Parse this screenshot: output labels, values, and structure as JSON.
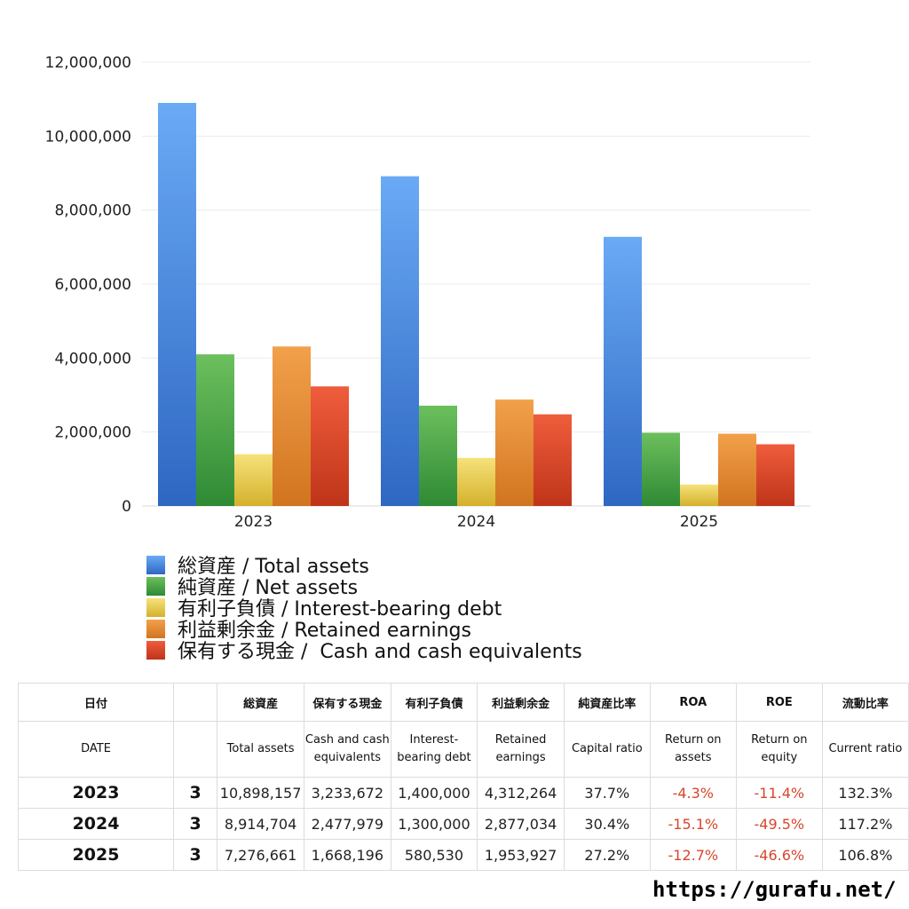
{
  "chart_data": {
    "type": "bar",
    "categories": [
      "2023",
      "2024",
      "2025"
    ],
    "series": [
      {
        "name": "総資産 / Total assets",
        "values": [
          10898157,
          8914704,
          7276661
        ],
        "color_top": "#6aaaf5",
        "color_bottom": "#2e67c2"
      },
      {
        "name": "純資産 / Net assets",
        "values": [
          4100000,
          2712000,
          1980000
        ],
        "color_top": "#6cbf5c",
        "color_bottom": "#2f8a35"
      },
      {
        "name": "有利子負債 / Interest-bearing debt",
        "values": [
          1400000,
          1300000,
          580530
        ],
        "color_top": "#f6e27a",
        "color_bottom": "#d4b12c"
      },
      {
        "name": "利益剰余金 / Retained earnings",
        "values": [
          4312264,
          2877034,
          1953927
        ],
        "color_top": "#f2a04b",
        "color_bottom": "#d1741f"
      },
      {
        "name": "保有する現金 /  Cash and cash equivalents",
        "values": [
          3233672,
          2477979,
          1668196
        ],
        "color_top": "#ef5d3c",
        "color_bottom": "#bf3419"
      }
    ],
    "y_ticks": [
      "0",
      "2,000,000",
      "4,000,000",
      "6,000,000",
      "8,000,000",
      "10,000,000",
      "12,000,000"
    ],
    "ylim": [
      0,
      12000000
    ],
    "grid": true,
    "legend_placement": "bottom"
  },
  "table": {
    "header_jp": [
      "日付",
      "",
      "総資産",
      "保有する現金",
      "有利子負債",
      "利益剰余金",
      "純資産比率",
      "ROA",
      "ROE",
      "流動比率"
    ],
    "header_en": [
      "DATE",
      "",
      "Total assets",
      "Cash and cash equivalents",
      "Interest-bearing debt",
      "Retained earnings",
      "Capital ratio",
      "Return on assets",
      "Return on equity",
      "Current ratio"
    ],
    "rows": [
      {
        "year": "2023",
        "month": "3",
        "total_assets": "10,898,157",
        "cash": "3,233,672",
        "debt": "1,400,000",
        "retained": "4,312,264",
        "capital_ratio": "37.7%",
        "roa": "-4.3%",
        "roe": "-11.4%",
        "current_ratio": "132.3%"
      },
      {
        "year": "2024",
        "month": "3",
        "total_assets": "8,914,704",
        "cash": "2,477,979",
        "debt": "1,300,000",
        "retained": "2,877,034",
        "capital_ratio": "30.4%",
        "roa": "-15.1%",
        "roe": "-49.5%",
        "current_ratio": "117.2%"
      },
      {
        "year": "2025",
        "month": "3",
        "total_assets": "7,276,661",
        "cash": "1,668,196",
        "debt": "580,530",
        "retained": "1,953,927",
        "capital_ratio": "27.2%",
        "roa": "-12.7%",
        "roe": "-46.6%",
        "current_ratio": "106.8%"
      }
    ],
    "negative_color": "#d9452b"
  },
  "footer": {
    "url": "https://gurafu.net/"
  }
}
